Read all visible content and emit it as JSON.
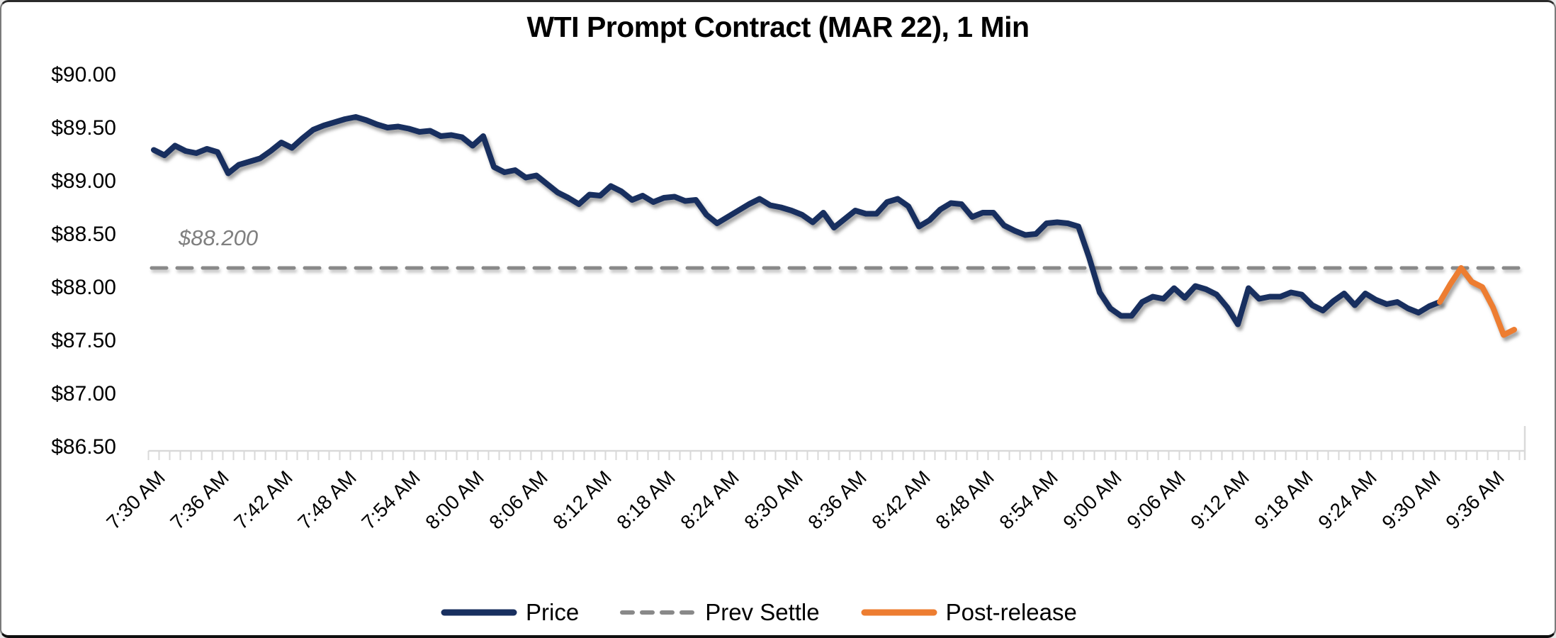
{
  "title": "WTI Prompt Contract (MAR 22), 1 Min",
  "annotation": {
    "prev_settle_label": "$88.200"
  },
  "colors": {
    "price": "#182F5F",
    "post_release": "#ED7D31",
    "prev_settle": "#898989",
    "axis": "#D9D9D9",
    "annotation_text": "#7F7F7F"
  },
  "legend": [
    {
      "label": "Price",
      "color": "#182F5F",
      "style": "solid"
    },
    {
      "label": "Prev Settle",
      "color": "#898989",
      "style": "dashed"
    },
    {
      "label": "Post-release",
      "color": "#ED7D31",
      "style": "solid"
    }
  ],
  "chart_data": {
    "type": "line",
    "title": "WTI Prompt Contract (MAR 22), 1 Min",
    "xlabel": "",
    "ylabel": "",
    "ylim": [
      86.5,
      90.0
    ],
    "y_tick_step": 0.5,
    "y_tick_labels": [
      "$90.00",
      "$89.50",
      "$89.00",
      "$88.50",
      "$88.00",
      "$87.50",
      "$87.00",
      "$86.50"
    ],
    "x_tick_labels": [
      "7:30 AM",
      "7:36 AM",
      "7:42 AM",
      "7:48 AM",
      "7:54 AM",
      "8:00 AM",
      "8:06 AM",
      "8:12 AM",
      "8:18 AM",
      "8:24 AM",
      "8:30 AM",
      "8:36 AM",
      "8:42 AM",
      "8:48 AM",
      "8:54 AM",
      "9:00 AM",
      "9:06 AM",
      "9:12 AM",
      "9:18 AM",
      "9:24 AM",
      "9:30 AM",
      "9:36 AM"
    ],
    "minutes_per_point": 1,
    "grid": false,
    "legend_position": "bottom",
    "prev_settle": 88.2,
    "series": [
      {
        "name": "Price",
        "color": "#182F5F",
        "start_index": 0,
        "times": [
          "7:30",
          "7:31",
          "7:32",
          "7:33",
          "7:34",
          "7:35",
          "7:36",
          "7:37",
          "7:38",
          "7:39",
          "7:40",
          "7:41",
          "7:42",
          "7:43",
          "7:44",
          "7:45",
          "7:46",
          "7:47",
          "7:48",
          "7:49",
          "7:50",
          "7:51",
          "7:52",
          "7:53",
          "7:54",
          "7:55",
          "7:56",
          "7:57",
          "7:58",
          "7:59",
          "8:00",
          "8:01",
          "8:02",
          "8:03",
          "8:04",
          "8:05",
          "8:06",
          "8:07",
          "8:08",
          "8:09",
          "8:10",
          "8:11",
          "8:12",
          "8:13",
          "8:14",
          "8:15",
          "8:16",
          "8:17",
          "8:18",
          "8:19",
          "8:20",
          "8:21",
          "8:22",
          "8:23",
          "8:24",
          "8:25",
          "8:26",
          "8:27",
          "8:28",
          "8:29",
          "8:30",
          "8:31",
          "8:32",
          "8:33",
          "8:34",
          "8:35",
          "8:36",
          "8:37",
          "8:38",
          "8:39",
          "8:40",
          "8:41",
          "8:42",
          "8:43",
          "8:44",
          "8:45",
          "8:46",
          "8:47",
          "8:48",
          "8:49",
          "8:50",
          "8:51",
          "8:52",
          "8:53",
          "8:54",
          "8:55",
          "8:56",
          "8:57",
          "8:58",
          "8:59",
          "9:00",
          "9:01",
          "9:02",
          "9:03",
          "9:04",
          "9:05",
          "9:06",
          "9:07",
          "9:08",
          "9:09",
          "9:10",
          "9:11",
          "9:12",
          "9:13",
          "9:14",
          "9:15",
          "9:16",
          "9:17",
          "9:18",
          "9:19",
          "9:20",
          "9:21",
          "9:22",
          "9:23",
          "9:24",
          "9:25",
          "9:26",
          "9:27",
          "9:28",
          "9:29",
          "9:30",
          "9:31"
        ],
        "values": [
          89.31,
          89.26,
          89.35,
          89.3,
          89.28,
          89.32,
          89.29,
          89.09,
          89.17,
          89.2,
          89.23,
          89.3,
          89.38,
          89.33,
          89.42,
          89.5,
          89.54,
          89.57,
          89.6,
          89.62,
          89.59,
          89.55,
          89.52,
          89.53,
          89.51,
          89.48,
          89.49,
          89.44,
          89.45,
          89.43,
          89.35,
          89.44,
          89.15,
          89.1,
          89.12,
          89.05,
          89.07,
          88.99,
          88.91,
          88.86,
          88.8,
          88.89,
          88.88,
          88.97,
          88.92,
          88.84,
          88.88,
          88.82,
          88.86,
          88.87,
          88.83,
          88.84,
          88.7,
          88.62,
          88.68,
          88.74,
          88.8,
          88.85,
          88.79,
          88.77,
          88.74,
          88.7,
          88.63,
          88.72,
          88.58,
          88.66,
          88.74,
          88.71,
          88.71,
          88.82,
          88.85,
          88.78,
          88.59,
          88.65,
          88.75,
          88.81,
          88.8,
          88.68,
          88.72,
          88.72,
          88.6,
          88.55,
          88.51,
          88.52,
          88.62,
          88.63,
          88.62,
          88.59,
          88.3,
          87.97,
          87.82,
          87.75,
          87.75,
          87.88,
          87.93,
          87.91,
          88.01,
          87.92,
          88.03,
          88.0,
          87.95,
          87.83,
          87.67,
          88.01,
          87.91,
          87.93,
          87.93,
          87.97,
          87.95,
          87.85,
          87.8,
          87.89,
          87.96,
          87.85,
          87.96,
          87.9,
          87.86,
          87.88,
          87.82,
          87.78,
          87.84,
          87.88
        ]
      },
      {
        "name": "Post-release",
        "color": "#ED7D31",
        "start_index": 121,
        "times": [
          "9:31",
          "9:32",
          "9:33",
          "9:34",
          "9:35",
          "9:36",
          "9:37",
          "9:38"
        ],
        "values": [
          87.88,
          88.05,
          88.2,
          88.07,
          88.02,
          87.83,
          87.57,
          87.62
        ]
      }
    ]
  }
}
